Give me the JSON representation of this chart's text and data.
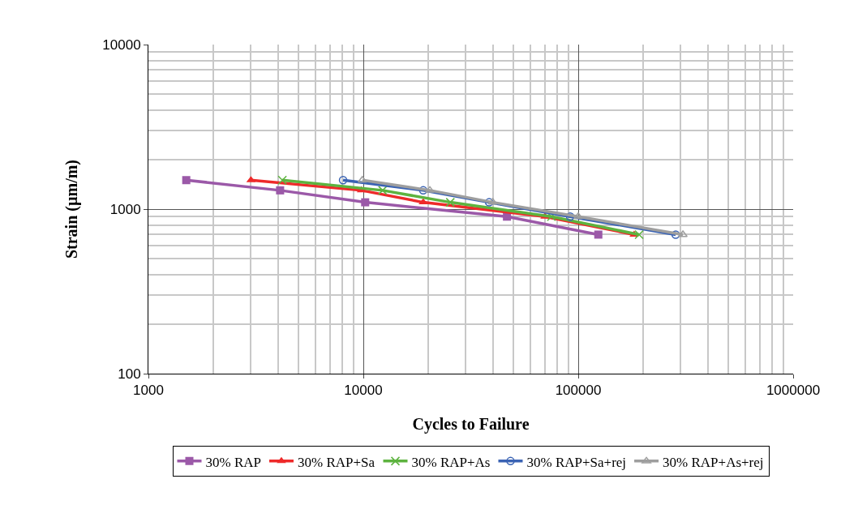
{
  "chart_data": {
    "type": "line",
    "xlabel": "Cycles to Failure",
    "ylabel": "Strain (µm/m)",
    "log": "xy",
    "xlim": [
      1000,
      1000000
    ],
    "ylim": [
      100,
      10000
    ],
    "xticks": [
      1000,
      10000,
      100000,
      1000000
    ],
    "yticks": [
      100,
      1000,
      10000
    ],
    "grid": true,
    "legend": "bottom",
    "series": [
      {
        "name": "30% RAP",
        "color": "#9b59a8",
        "marker": "square",
        "x": [
          1500,
          4100,
          10200,
          46600,
          124000
        ],
        "values": [
          1500,
          1300,
          1100,
          900,
          700
        ]
      },
      {
        "name": "30% RAP+Sa",
        "color": "#ee2a2a",
        "marker": "triangle",
        "x": [
          3000,
          9800,
          19000,
          70000,
          182000
        ],
        "values": [
          1500,
          1300,
          1100,
          900,
          700
        ]
      },
      {
        "name": "30% RAP+As",
        "color": "#5db33f",
        "marker": "cross",
        "x": [
          4200,
          12300,
          25400,
          75000,
          192000
        ],
        "values": [
          1500,
          1300,
          1100,
          900,
          700
        ]
      },
      {
        "name": "30% RAP+Sa+rej",
        "color": "#3a63b4",
        "marker": "circle-open",
        "x": [
          8050,
          19000,
          38500,
          91700,
          284000
        ],
        "values": [
          1500,
          1300,
          1100,
          900,
          700
        ]
      },
      {
        "name": "30% RAP+As+rej",
        "color": "#9e9e9e",
        "marker": "triangle-open",
        "x": [
          9900,
          20400,
          40000,
          100000,
          307000
        ],
        "values": [
          1500,
          1300,
          1100,
          900,
          700
        ]
      }
    ]
  }
}
